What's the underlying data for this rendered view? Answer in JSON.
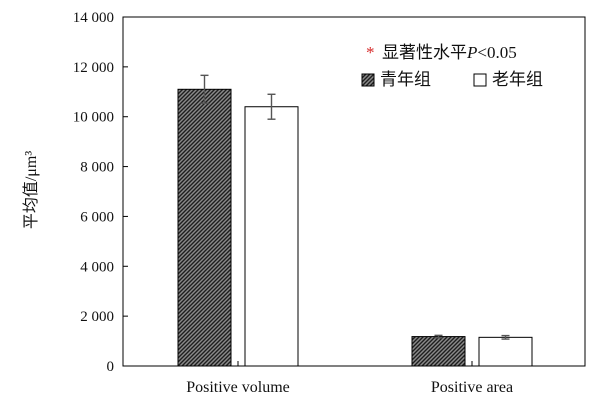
{
  "chart_data": {
    "type": "bar",
    "categories": [
      "Positive volume",
      "Positive area"
    ],
    "series": [
      {
        "name": "青年组",
        "values": [
          11100,
          1180
        ],
        "errors": [
          560,
          50
        ],
        "fill": "hatched-dark"
      },
      {
        "name": "老年组",
        "values": [
          10400,
          1150
        ],
        "errors": [
          500,
          70
        ],
        "fill": "white"
      }
    ],
    "ylabel": "平均值/μm³",
    "ylim": [
      0,
      14000
    ],
    "yticks": [
      0,
      2000,
      4000,
      6000,
      8000,
      10000,
      12000,
      14000
    ],
    "ytick_labels": [
      "0",
      "2 000",
      "4 000",
      "6 000",
      "8 000",
      "10 000",
      "12 000",
      "14 000"
    ],
    "legend": {
      "position": "top-right",
      "significance_symbol": "*",
      "significance_text_prefix": "显著性水平",
      "significance_text_var": "P",
      "significance_text_suffix": "<0.05",
      "series_labels": [
        "青年组",
        "老年组"
      ]
    },
    "grid": false
  },
  "colors": {
    "axis": "#000000",
    "bar_edge": "#000000",
    "hatch_dark": "#333333",
    "hatch_light": "#8a8a8a",
    "star": "#d62828"
  }
}
